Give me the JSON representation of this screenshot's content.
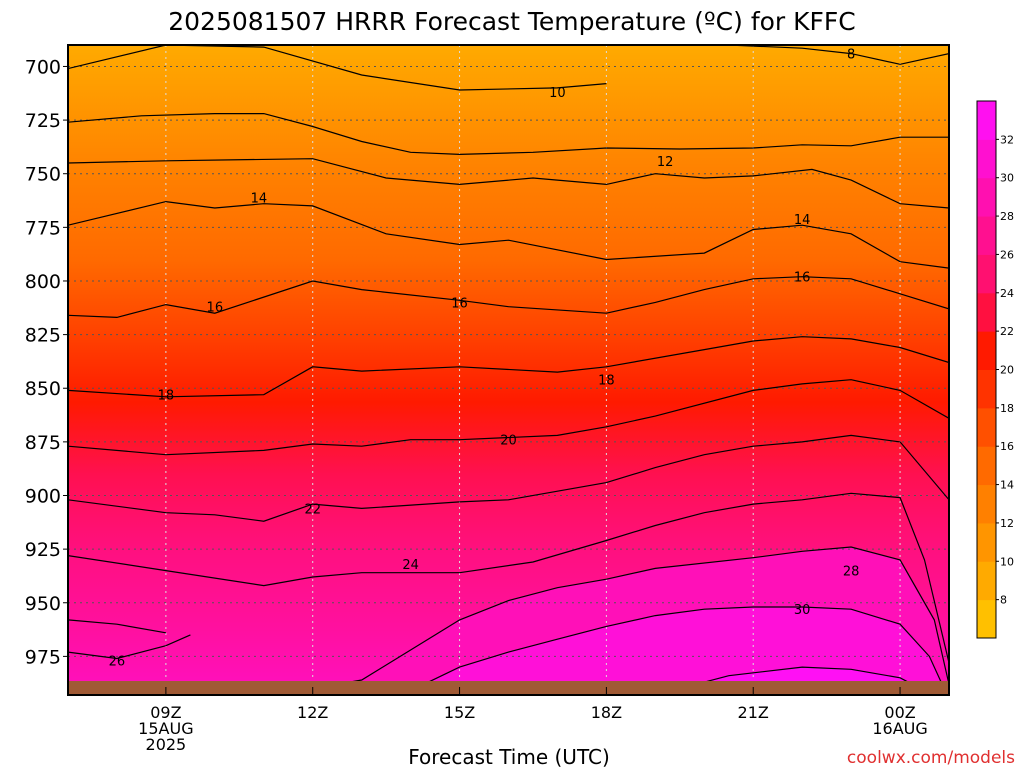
{
  "title": "2025081507 HRRR Forecast Temperature (ºC) for KFFC",
  "xlabel": "Forecast Time (UTC)",
  "credit": "coolwx.com/models",
  "chart_data": {
    "type": "contour",
    "title": "2025081507 HRRR Forecast Temperature (ºC) for KFFC",
    "xlabel": "Forecast Time (UTC)",
    "ylabel": "",
    "x_range_hours_utc": [
      7,
      25
    ],
    "y_range_hpa": [
      690,
      993
    ],
    "y_axis_inverted": true,
    "grid": true,
    "x_ticks": [
      {
        "hour": 9,
        "lines": [
          "09Z",
          "15AUG",
          "2025"
        ]
      },
      {
        "hour": 12,
        "lines": [
          "12Z"
        ]
      },
      {
        "hour": 15,
        "lines": [
          "15Z"
        ]
      },
      {
        "hour": 18,
        "lines": [
          "18Z"
        ]
      },
      {
        "hour": 21,
        "lines": [
          "21Z"
        ]
      },
      {
        "hour": 24,
        "lines": [
          "00Z",
          "16AUG"
        ]
      }
    ],
    "y_ticks": [
      700,
      725,
      750,
      775,
      800,
      825,
      850,
      875,
      900,
      925,
      950,
      975
    ],
    "colorbar": {
      "labels": [
        8,
        10,
        12,
        14,
        16,
        18,
        20,
        22,
        24,
        26,
        28,
        30,
        32
      ],
      "levels": [
        6,
        8,
        10,
        12,
        14,
        16,
        18,
        20,
        22,
        24,
        26,
        28,
        30,
        32,
        34
      ],
      "colors": [
        "#ffc000",
        "#ffaa00",
        "#ff9500",
        "#ff8000",
        "#ff6a00",
        "#ff5000",
        "#ff3300",
        "#ff1a00",
        "#ff1040",
        "#ff1070",
        "#ff1090",
        "#ff10b0",
        "#ff10d0",
        "#ff10f0"
      ]
    },
    "ground_color": "#a05a35",
    "contour_labels": [
      {
        "value": 8,
        "hour": 23.0,
        "hpa": 694
      },
      {
        "value": 10,
        "hour": 17.0,
        "hpa": 712
      },
      {
        "value": 12,
        "hour": 19.2,
        "hpa": 744
      },
      {
        "value": 14,
        "hour": 10.9,
        "hpa": 761
      },
      {
        "value": 14,
        "hour": 22.0,
        "hpa": 771
      },
      {
        "value": 16,
        "hour": 10.0,
        "hpa": 812
      },
      {
        "value": 16,
        "hour": 15.0,
        "hpa": 810
      },
      {
        "value": 16,
        "hour": 22.0,
        "hpa": 798
      },
      {
        "value": 18,
        "hour": 9.0,
        "hpa": 853
      },
      {
        "value": 18,
        "hour": 18.0,
        "hpa": 846
      },
      {
        "value": 20,
        "hour": 16.0,
        "hpa": 874
      },
      {
        "value": 22,
        "hour": 12.0,
        "hpa": 906
      },
      {
        "value": 24,
        "hour": 14.0,
        "hpa": 932
      },
      {
        "value": 26,
        "hour": 8.0,
        "hpa": 977
      },
      {
        "value": 28,
        "hour": 23.0,
        "hpa": 935
      },
      {
        "value": 30,
        "hour": 22.0,
        "hpa": 953
      }
    ],
    "isotherms": [
      {
        "value": 8,
        "points": [
          [
            7,
            701
          ],
          [
            9,
            690
          ],
          [
            11,
            691
          ],
          [
            13,
            704
          ],
          [
            15,
            711
          ],
          [
            17,
            710
          ],
          [
            18,
            708
          ]
        ]
      },
      {
        "value": 8,
        "points": [
          [
            20.5,
            690
          ],
          [
            22,
            691.5
          ],
          [
            23,
            694
          ],
          [
            24,
            699
          ],
          [
            25,
            694
          ]
        ]
      },
      {
        "value": 10,
        "points": [
          [
            7,
            726
          ],
          [
            8.5,
            723
          ],
          [
            10,
            722
          ],
          [
            11,
            722
          ],
          [
            12,
            728
          ],
          [
            13,
            735
          ],
          [
            14,
            740
          ],
          [
            15,
            741
          ],
          [
            16.5,
            740
          ],
          [
            18,
            738
          ],
          [
            19.5,
            738.5
          ],
          [
            21,
            738
          ],
          [
            22,
            736.5
          ],
          [
            23,
            737
          ],
          [
            24,
            733
          ],
          [
            25,
            733
          ]
        ]
      },
      {
        "value": 12,
        "points": [
          [
            7,
            745
          ],
          [
            9,
            744
          ],
          [
            12,
            743
          ],
          [
            13.5,
            752
          ],
          [
            15,
            755
          ],
          [
            16.5,
            752
          ],
          [
            18,
            755
          ],
          [
            19,
            750
          ],
          [
            20,
            752
          ],
          [
            21,
            751
          ],
          [
            22.2,
            748
          ],
          [
            23,
            753
          ],
          [
            24,
            764
          ],
          [
            25,
            766
          ]
        ]
      },
      {
        "value": 14,
        "points": [
          [
            7,
            774
          ],
          [
            9,
            763
          ],
          [
            10,
            766
          ],
          [
            11,
            764
          ],
          [
            12,
            765
          ],
          [
            13.5,
            778
          ],
          [
            15,
            783
          ],
          [
            16,
            781
          ],
          [
            18,
            790
          ],
          [
            20,
            787
          ],
          [
            21,
            776
          ],
          [
            22,
            774
          ],
          [
            23,
            778
          ],
          [
            24,
            791
          ],
          [
            25,
            794
          ]
        ]
      },
      {
        "value": 16,
        "points": [
          [
            7,
            816
          ],
          [
            8,
            817
          ],
          [
            9,
            811
          ],
          [
            10,
            815
          ],
          [
            12,
            800
          ],
          [
            13,
            804
          ],
          [
            15,
            809
          ],
          [
            16,
            812
          ],
          [
            18,
            815
          ],
          [
            19,
            810
          ],
          [
            20,
            804
          ],
          [
            21,
            799
          ],
          [
            22,
            798
          ],
          [
            23,
            799
          ],
          [
            24,
            806
          ],
          [
            25,
            813
          ]
        ]
      },
      {
        "value": 18,
        "points": [
          [
            7,
            851
          ],
          [
            9,
            854
          ],
          [
            11,
            853
          ],
          [
            12,
            840
          ],
          [
            13,
            842
          ],
          [
            15,
            840
          ],
          [
            17,
            842.5
          ],
          [
            18,
            840
          ],
          [
            20,
            832
          ],
          [
            21,
            828
          ],
          [
            22,
            826
          ],
          [
            23,
            827
          ],
          [
            24,
            831
          ],
          [
            25,
            838
          ]
        ]
      },
      {
        "value": 20,
        "points": [
          [
            7,
            877
          ],
          [
            9,
            881
          ],
          [
            11,
            879
          ],
          [
            12,
            876
          ],
          [
            13,
            877
          ],
          [
            14,
            874
          ],
          [
            15,
            874
          ],
          [
            17,
            872
          ],
          [
            18,
            868
          ],
          [
            19,
            863
          ],
          [
            21,
            851
          ],
          [
            22,
            848
          ],
          [
            23,
            846
          ],
          [
            24,
            851
          ],
          [
            25,
            864
          ]
        ]
      },
      {
        "value": 22,
        "points": [
          [
            7,
            902
          ],
          [
            9,
            908
          ],
          [
            10,
            909
          ],
          [
            11,
            912
          ],
          [
            12,
            904
          ],
          [
            13,
            906
          ],
          [
            15,
            903
          ],
          [
            16,
            902
          ],
          [
            18,
            894
          ],
          [
            19,
            887
          ],
          [
            20,
            881
          ],
          [
            21,
            877
          ],
          [
            22,
            875
          ],
          [
            23,
            872
          ],
          [
            24,
            875
          ],
          [
            25,
            902
          ]
        ]
      },
      {
        "value": 24,
        "points": [
          [
            7,
            928
          ],
          [
            9,
            935
          ],
          [
            11,
            942
          ],
          [
            12,
            938
          ],
          [
            13,
            936
          ],
          [
            15,
            936
          ],
          [
            16.5,
            931
          ],
          [
            18,
            921
          ],
          [
            19,
            914
          ],
          [
            20,
            908
          ],
          [
            21,
            904
          ],
          [
            22,
            902
          ],
          [
            23,
            899
          ],
          [
            24,
            901
          ],
          [
            24.5,
            930
          ],
          [
            25,
            978
          ]
        ]
      },
      {
        "value": 26,
        "points": [
          [
            7,
            973
          ],
          [
            8,
            976
          ],
          [
            9,
            970
          ],
          [
            9.5,
            965
          ]
        ]
      },
      {
        "value": 26,
        "points": [
          [
            7,
            958
          ],
          [
            8,
            960
          ],
          [
            9,
            964
          ]
        ]
      },
      {
        "value": 28,
        "points": [
          [
            12,
            990
          ],
          [
            13,
            986
          ],
          [
            14,
            972
          ],
          [
            15,
            958
          ],
          [
            16,
            949
          ],
          [
            17,
            943
          ],
          [
            18,
            939
          ],
          [
            19,
            934
          ],
          [
            21,
            929
          ],
          [
            22,
            926
          ],
          [
            23,
            924
          ],
          [
            24,
            930
          ],
          [
            24.7,
            958
          ],
          [
            25,
            988
          ]
        ]
      },
      {
        "value": 30,
        "points": [
          [
            14,
            991
          ],
          [
            15,
            980
          ],
          [
            16,
            973
          ],
          [
            17,
            967
          ],
          [
            18,
            961
          ],
          [
            19,
            956
          ],
          [
            20,
            953
          ],
          [
            21,
            952
          ],
          [
            22,
            952
          ],
          [
            23,
            953
          ],
          [
            24,
            960
          ],
          [
            24.6,
            975
          ],
          [
            24.9,
            990
          ]
        ]
      },
      {
        "value": 32,
        "points": [
          [
            19.5,
            990
          ],
          [
            20.5,
            984
          ],
          [
            22,
            980
          ],
          [
            23,
            981
          ],
          [
            24,
            985
          ],
          [
            24.5,
            991
          ]
        ]
      },
      {
        "value": 28,
        "points": [
          [
            7,
            991
          ],
          [
            9,
            989.5
          ],
          [
            11,
            988.5
          ],
          [
            12,
            990
          ]
        ]
      }
    ]
  }
}
